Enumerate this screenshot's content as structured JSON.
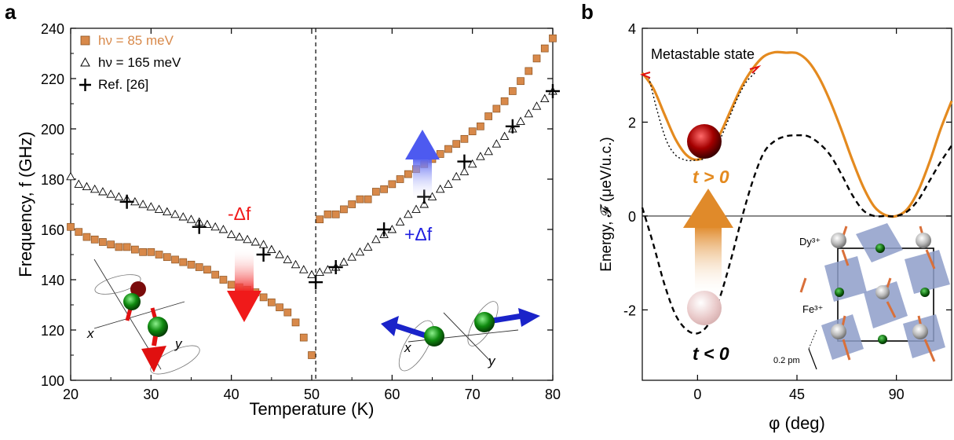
{
  "chart_data": [
    {
      "panel": "a",
      "type": "scatter",
      "xlabel": "Temperature (K)",
      "ylabel": "Frequency, f (GHz)",
      "xlim": [
        20,
        80
      ],
      "ylim": [
        100,
        240
      ],
      "xticks": [
        20,
        30,
        40,
        50,
        60,
        70,
        80
      ],
      "yticks": [
        100,
        120,
        140,
        160,
        180,
        200,
        220,
        240
      ],
      "legend": {
        "placement": "top-left",
        "entries": [
          "hν = 85 meV",
          "hν = 165 meV",
          "Ref. [26]"
        ]
      },
      "annotations": {
        "minus": "-Δf",
        "plus": "+Δf",
        "x_axis_label": "x",
        "y_axis_label": "y"
      },
      "vline_x": 50.5,
      "series": [
        {
          "name": "hν = 85 meV",
          "marker": "square",
          "color": "#d8894a",
          "x": [
            20,
            21,
            22,
            23,
            24,
            25,
            26,
            27,
            28,
            29,
            30,
            31,
            32,
            33,
            34,
            35,
            36,
            37,
            38,
            39,
            40,
            41,
            42,
            43,
            44,
            45,
            46,
            47,
            48,
            49,
            50,
            51,
            52,
            53,
            54,
            55,
            56,
            57,
            58,
            59,
            60,
            61,
            62,
            63,
            64,
            65,
            66,
            67,
            68,
            69,
            70,
            71,
            72,
            73,
            74,
            75,
            76,
            77,
            78,
            79,
            80
          ],
          "y": [
            161,
            159,
            157,
            156,
            155,
            154,
            153,
            153,
            152,
            151,
            151,
            150,
            149,
            148,
            147,
            146,
            145,
            144,
            142,
            140,
            138,
            137,
            136,
            135,
            133,
            131,
            129,
            127,
            123,
            117,
            110,
            164,
            166,
            166,
            168,
            170,
            172,
            172,
            175,
            176,
            178,
            180,
            182,
            184,
            186,
            188,
            190,
            192,
            194,
            196,
            199,
            201,
            205,
            208,
            211,
            215,
            219,
            223,
            228,
            232,
            236
          ]
        },
        {
          "name": "hν = 165 meV",
          "marker": "triangle",
          "color": "#000000",
          "x": [
            20,
            21,
            22,
            23,
            24,
            25,
            26,
            27,
            28,
            29,
            30,
            31,
            32,
            33,
            34,
            35,
            36,
            37,
            38,
            39,
            40,
            41,
            42,
            43,
            44,
            45,
            46,
            47,
            48,
            49,
            50,
            51,
            52,
            53,
            54,
            55,
            56,
            57,
            58,
            59,
            60,
            61,
            62,
            63,
            64,
            65,
            66,
            67,
            68,
            69,
            70,
            71,
            72,
            73,
            74,
            75,
            76,
            77,
            78,
            79,
            80
          ],
          "y": [
            181,
            178,
            177,
            176,
            175,
            174,
            173,
            172,
            171,
            170,
            169,
            168,
            167,
            166,
            165,
            164,
            163,
            162,
            161,
            160,
            158,
            157,
            156,
            155,
            154,
            152,
            150,
            148,
            146,
            144,
            142,
            143,
            144,
            145,
            147,
            149,
            151,
            153,
            156,
            158,
            160,
            163,
            166,
            168,
            170,
            173,
            176,
            178,
            181,
            183,
            186,
            189,
            191,
            194,
            197,
            200,
            203,
            206,
            209,
            212,
            215
          ]
        },
        {
          "name": "Ref. [26]",
          "marker": "plus",
          "color": "#000000",
          "x": [
            27,
            36,
            44,
            50.5,
            53,
            59,
            64,
            69,
            75,
            80
          ],
          "y": [
            171,
            161,
            150,
            139,
            145,
            160,
            173,
            187,
            201,
            215
          ]
        }
      ]
    },
    {
      "panel": "b",
      "type": "line",
      "xlabel": "φ (deg)",
      "ylabel": "Energy, 𝓕 (μeV/u.c.)",
      "xlim": [
        -25,
        115
      ],
      "ylim": [
        -3.5,
        4
      ],
      "xticks": [
        0,
        45,
        90
      ],
      "yticks": [
        -2,
        0,
        2,
        4
      ],
      "annotations": {
        "metastable": "Metastable state",
        "t_pos": "t > 0",
        "t_neg": "t < 0",
        "dy": "Dy³⁺",
        "fe": "Fe³⁺",
        "scale": "0.2 pm"
      },
      "series": [
        {
          "name": "t > 0",
          "style": "solid",
          "color": "#e48a1f",
          "x": [
            -25,
            -20,
            -15,
            -10,
            -5,
            0,
            5,
            10,
            15,
            20,
            25,
            30,
            35,
            40,
            45,
            50,
            55,
            60,
            65,
            70,
            75,
            80,
            85,
            90,
            95,
            100,
            105,
            110,
            115
          ],
          "y": [
            3.05,
            2.72,
            2.17,
            1.64,
            1.3,
            1.2,
            1.35,
            1.73,
            2.25,
            2.76,
            3.14,
            3.4,
            3.49,
            3.48,
            3.47,
            3.3,
            2.95,
            2.45,
            1.85,
            1.2,
            0.62,
            0.2,
            0.02,
            0.0,
            0.15,
            0.55,
            1.15,
            1.85,
            2.45
          ]
        },
        {
          "name": "t < 0",
          "style": "dashed",
          "color": "#000000",
          "x": [
            -25,
            -20,
            -15,
            -10,
            -5,
            0,
            5,
            10,
            15,
            20,
            25,
            30,
            35,
            40,
            45,
            50,
            55,
            60,
            65,
            70,
            75,
            80,
            85,
            90,
            95,
            100,
            105,
            110,
            115
          ],
          "y": [
            0.18,
            -0.6,
            -1.45,
            -2.1,
            -2.42,
            -2.5,
            -2.3,
            -1.75,
            -0.95,
            -0.05,
            0.75,
            1.35,
            1.6,
            1.7,
            1.72,
            1.7,
            1.55,
            1.3,
            0.9,
            0.45,
            0.12,
            0.0,
            0.0,
            0.0,
            0.1,
            0.35,
            0.75,
            1.15,
            1.5
          ]
        },
        {
          "name": "metastable",
          "style": "dotted",
          "color": "#000000",
          "x": [
            -22,
            -18,
            -14,
            -10,
            -6,
            -3,
            0,
            3,
            6,
            10,
            14,
            18,
            22,
            26
          ],
          "y": [
            2.95,
            2.2,
            1.6,
            1.3,
            1.2,
            1.18,
            1.2,
            1.22,
            1.35,
            1.62,
            2.05,
            2.5,
            2.85,
            3.05
          ]
        }
      ]
    }
  ]
}
